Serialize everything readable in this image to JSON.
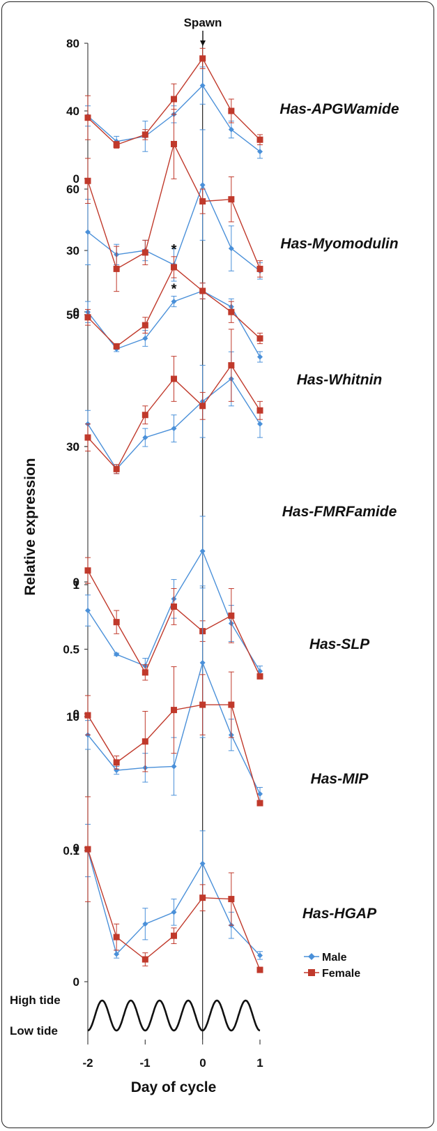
{
  "colors": {
    "male": "#4a90d9",
    "female": "#c0392b",
    "axis": "#444444"
  },
  "markers": {
    "spawn_label": "Spawn"
  },
  "axes": {
    "x_label": "Day of cycle",
    "y_label": "Relative expression",
    "x_ticks": [
      "-2",
      "-1",
      "0",
      "1"
    ],
    "tide_high": "High tide",
    "tide_low": "Low tide"
  },
  "legend": {
    "male": "Male",
    "female": "Female"
  },
  "chart_data": {
    "type": "line",
    "x": [
      -2,
      -1.5,
      -1,
      -0.5,
      0,
      0.5,
      1
    ],
    "xlim": [
      -2,
      1
    ],
    "spawn_x": 0,
    "panels": [
      {
        "name": "Has-APGWamide",
        "yticks": [
          0,
          40,
          80
        ],
        "ytick_labels": [
          "0",
          "40",
          "80"
        ],
        "ylim": [
          0,
          80
        ],
        "series": [
          {
            "name": "Male",
            "values": [
              37,
              22,
              25,
              38,
              55,
              29,
              16
            ],
            "err": [
              6,
              3,
              9,
              5,
              11,
              5,
              4
            ]
          },
          {
            "name": "Female",
            "values": [
              36,
              20,
              26,
              47,
              71,
              40,
              23
            ],
            "err": [
              13,
              2,
              3,
              9,
              6,
              7,
              3
            ]
          }
        ],
        "annotations": []
      },
      {
        "name": "Has-Myomodulin",
        "yticks": [
          0,
          30,
          60
        ],
        "ytick_labels": [
          "0",
          "30",
          "60"
        ],
        "ylim": [
          0,
          90
        ],
        "series": [
          {
            "name": "Male",
            "values": [
              39,
              28,
              30,
              23,
              62,
              31,
              20
            ],
            "err": [
              16,
              5,
              5,
              8,
              27,
              11,
              4
            ]
          },
          {
            "name": "Female",
            "values": [
              64,
              21,
              29,
              82,
              54,
              55,
              21
            ],
            "err": [
              11,
              11,
              6,
              17,
              6,
              11,
              4
            ]
          }
        ],
        "annotations": []
      },
      {
        "name": "Has-Whitnin",
        "yticks": [
          0,
          50
        ],
        "ytick_labels": [
          "0",
          "50"
        ],
        "ylim": [
          0,
          100
        ],
        "series": [
          {
            "name": "Male",
            "values": [
              51,
              37,
              41,
              55,
              59,
              53,
              34
            ],
            "err": [
              4,
              1,
              3,
              2,
              3,
              3,
              2
            ]
          },
          {
            "name": "Female",
            "values": [
              49,
              38,
              46,
              68,
              59,
              51,
              41
            ],
            "err": [
              3,
              1,
              3,
              4,
              3,
              4,
              2
            ]
          }
        ],
        "annotations": [
          {
            "series": "Female",
            "x": -0.5,
            "text": "*"
          },
          {
            "series": "Male",
            "x": -0.5,
            "text": "*"
          }
        ]
      },
      {
        "name": "Has-FMRFamide",
        "yticks": [
          0,
          30
        ],
        "ytick_labels": [
          "0",
          "30"
        ],
        "ylim": [
          0,
          60
        ],
        "series": [
          {
            "name": "Male",
            "values": [
              35,
              25,
              32,
              34,
              40,
              45,
              35
            ],
            "err": [
              3,
              1,
              2,
              3,
              8,
              6,
              3
            ]
          },
          {
            "name": "Female",
            "values": [
              32,
              25,
              37,
              45,
              39,
              48,
              38
            ],
            "err": [
              3,
              1,
              2,
              5,
              3,
              8,
              2
            ]
          }
        ],
        "annotations": []
      },
      {
        "name": "Has-SLP",
        "yticks": [
          0,
          0.5,
          1
        ],
        "ytick_labels": [
          "0",
          "0.5",
          "1"
        ],
        "ylim": [
          0,
          1.4
        ],
        "series": [
          {
            "name": "Male",
            "values": [
              0.8,
              0.46,
              0.37,
              0.89,
              1.26,
              0.7,
              0.33
            ],
            "err": [
              0.12,
              0.01,
              0.06,
              0.15,
              0.27,
              0.14,
              0.04
            ]
          },
          {
            "name": "Female",
            "values": [
              1.11,
              0.71,
              0.32,
              0.83,
              0.64,
              0.76,
              0.29
            ],
            "err": [
              0.1,
              0.09,
              0.06,
              0.14,
              0.08,
              0.21,
              0.02
            ]
          }
        ],
        "annotations": []
      },
      {
        "name": "Has-MIP",
        "yticks": [
          0,
          10
        ],
        "ytick_labels": [
          "0",
          "10"
        ],
        "ylim": [
          0,
          20
        ],
        "series": [
          {
            "name": "Male",
            "values": [
              8.6,
              5.9,
              6.1,
              6.2,
              14.1,
              8.6,
              4.1
            ],
            "err": [
              1.1,
              0.3,
              1.1,
              2.2,
              5.7,
              1.2,
              0.5
            ]
          },
          {
            "name": "Female",
            "values": [
              10.1,
              6.5,
              8.1,
              10.5,
              10.9,
              10.9,
              3.4
            ],
            "err": [
              1.5,
              0.5,
              2.3,
              3.3,
              2.3,
              2.5,
              0.2
            ]
          }
        ],
        "annotations": []
      },
      {
        "name": "Has-HGAP",
        "yticks": [
          0,
          0.1
        ],
        "ytick_labels": [
          "0",
          "0.1"
        ],
        "ylim": [
          0,
          0.14
        ],
        "series": [
          {
            "name": "Male",
            "values": [
              0.1,
              0.021,
              0.044,
              0.053,
              0.09,
              0.043,
              0.02
            ],
            "err": [
              0.02,
              0.003,
              0.012,
              0.01,
              0.025,
              0.01,
              0.003
            ]
          },
          {
            "name": "Female",
            "values": [
              0.101,
              0.034,
              0.017,
              0.035,
              0.064,
              0.063,
              0.009
            ],
            "err": [
              0.04,
              0.01,
              0.005,
              0.006,
              0.01,
              0.02,
              0.002
            ]
          }
        ],
        "annotations": []
      }
    ]
  }
}
